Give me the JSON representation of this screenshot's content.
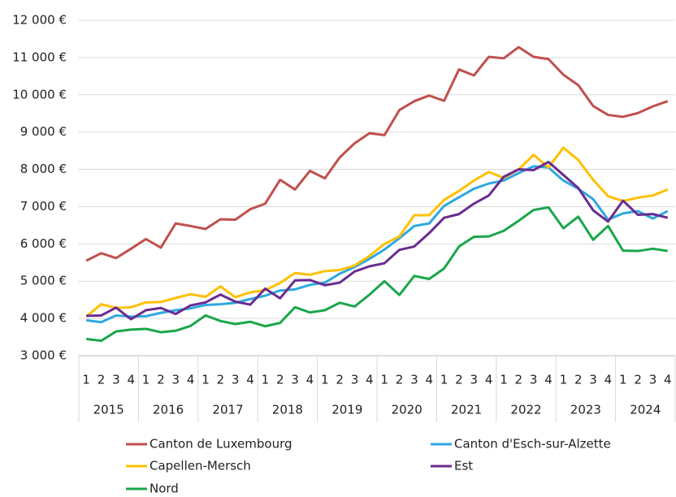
{
  "chart_data": {
    "type": "line",
    "categories": [
      "1",
      "2",
      "3",
      "4",
      "1",
      "2",
      "3",
      "4",
      "1",
      "2",
      "3",
      "4",
      "1",
      "2",
      "3",
      "4",
      "1",
      "2",
      "3",
      "4",
      "1",
      "2",
      "3",
      "4",
      "1",
      "2",
      "3",
      "4",
      "1",
      "2",
      "3",
      "4",
      "1",
      "2",
      "3",
      "4",
      "1",
      "2",
      "3",
      "4"
    ],
    "years": [
      "2015",
      "2016",
      "2017",
      "2018",
      "2019",
      "2020",
      "2021",
      "2022",
      "2023",
      "2024"
    ],
    "ylim": [
      3000,
      12000
    ],
    "yticks": [
      {
        "value": 3000,
        "label": "3 000 €"
      },
      {
        "value": 4000,
        "label": "4 000 €"
      },
      {
        "value": 5000,
        "label": "5 000 €"
      },
      {
        "value": 6000,
        "label": "6 000 €"
      },
      {
        "value": 7000,
        "label": "7 000 €"
      },
      {
        "value": 8000,
        "label": "8 000 €"
      },
      {
        "value": 9000,
        "label": "9 000 €"
      },
      {
        "value": 10000,
        "label": "10 000 €"
      },
      {
        "value": 11000,
        "label": "11 000 €"
      },
      {
        "value": 12000,
        "label": "12 000 €"
      }
    ],
    "grid": true,
    "series": [
      {
        "name": "Canton de Luxembourg",
        "color": "#c0504d",
        "values": [
          5550,
          5750,
          5620,
          5870,
          6130,
          5900,
          6550,
          6480,
          6400,
          6660,
          6650,
          6930,
          7080,
          7720,
          7460,
          7960,
          7760,
          8320,
          8700,
          8970,
          8920,
          9590,
          9830,
          9980,
          9840,
          10680,
          10520,
          11020,
          10980,
          11280,
          11020,
          10960,
          10540,
          10260,
          9700,
          9460,
          9410,
          9510,
          9690,
          9830
        ]
      },
      {
        "name": "Canton d'Esch-sur-Alzette",
        "color": "#2ea8e0",
        "values": [
          3950,
          3900,
          4080,
          4050,
          4060,
          4150,
          4220,
          4270,
          4360,
          4380,
          4420,
          4520,
          4610,
          4750,
          4780,
          4900,
          4960,
          5200,
          5380,
          5600,
          5850,
          6150,
          6480,
          6550,
          7020,
          7250,
          7480,
          7620,
          7700,
          7900,
          8080,
          8050,
          7700,
          7480,
          7200,
          6650,
          6820,
          6880,
          6680,
          6880
        ]
      },
      {
        "name": "Capellen-Mersch",
        "color": "#ffc000",
        "values": [
          4050,
          4380,
          4280,
          4300,
          4430,
          4440,
          4550,
          4650,
          4580,
          4860,
          4570,
          4700,
          4760,
          4950,
          5220,
          5170,
          5270,
          5300,
          5420,
          5680,
          6000,
          6200,
          6770,
          6770,
          7180,
          7420,
          7700,
          7930,
          7770,
          8000,
          8390,
          8050,
          8580,
          8250,
          7720,
          7280,
          7150,
          7240,
          7300,
          7460
        ]
      },
      {
        "name": "Est",
        "color": "#6a2c91",
        "values": [
          4070,
          4080,
          4290,
          3980,
          4220,
          4280,
          4120,
          4350,
          4430,
          4640,
          4450,
          4370,
          4800,
          4540,
          5020,
          5030,
          4890,
          4960,
          5260,
          5400,
          5480,
          5840,
          5930,
          6290,
          6700,
          6800,
          7080,
          7300,
          7800,
          8000,
          7980,
          8200,
          7850,
          7500,
          6900,
          6600,
          7160,
          6780,
          6800,
          6700
        ]
      },
      {
        "name": "Nord",
        "color": "#1aa64a",
        "values": [
          3450,
          3400,
          3650,
          3700,
          3720,
          3630,
          3670,
          3800,
          4080,
          3930,
          3850,
          3910,
          3790,
          3880,
          4300,
          4160,
          4220,
          4420,
          4320,
          4640,
          5000,
          4630,
          5140,
          5060,
          5340,
          5930,
          6190,
          6200,
          6350,
          6620,
          6910,
          6980,
          6420,
          6730,
          6110,
          6480,
          5820,
          5810,
          5870,
          5810
        ]
      }
    ]
  }
}
